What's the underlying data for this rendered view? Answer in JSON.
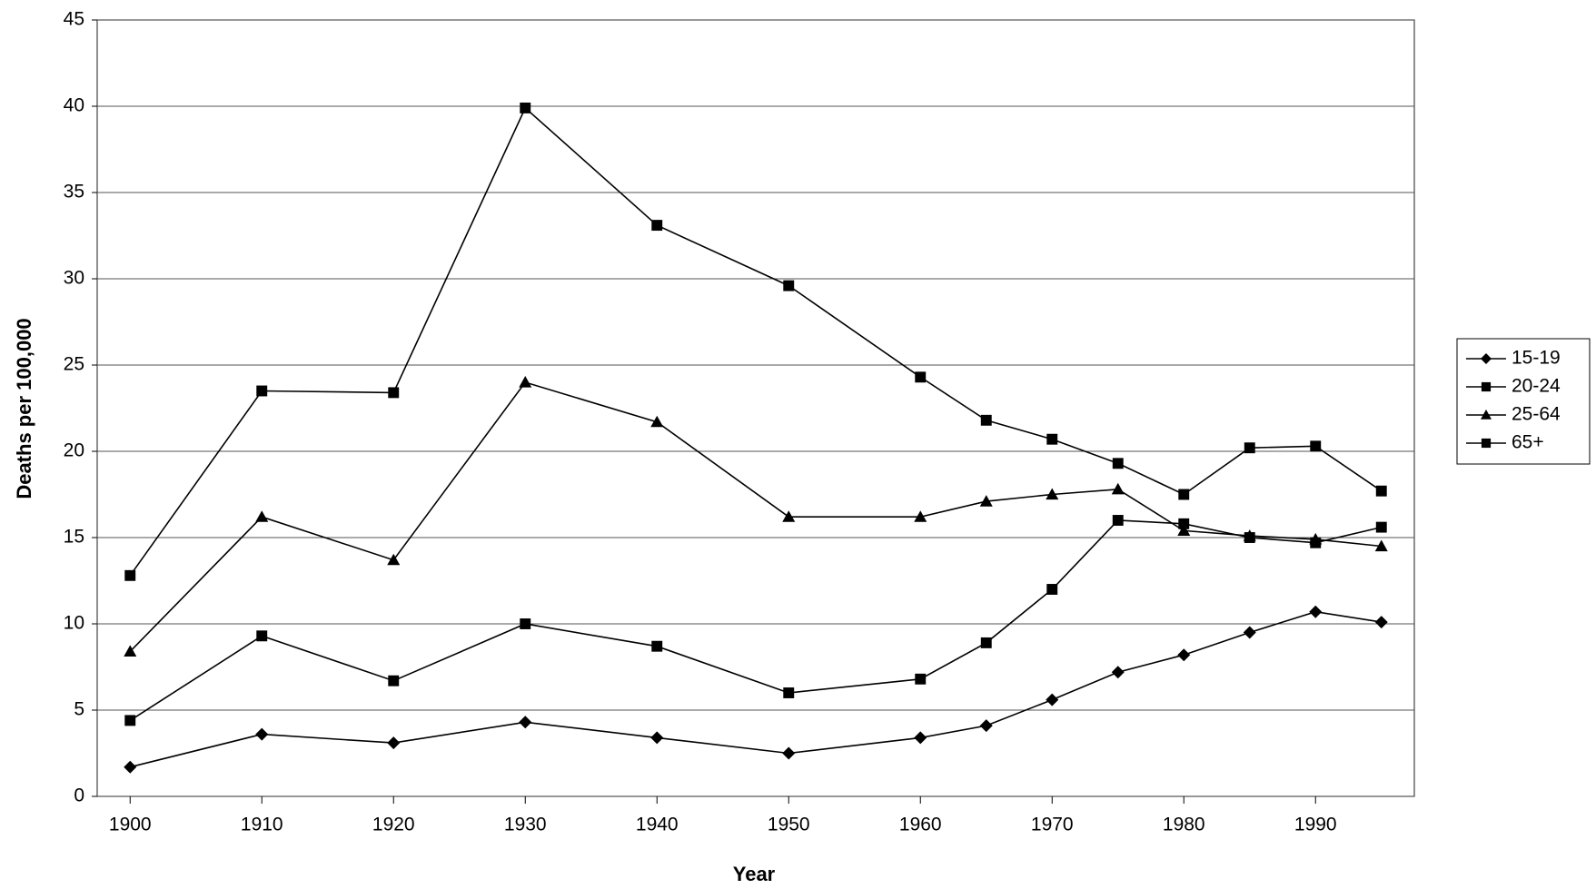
{
  "chart_data": {
    "type": "line",
    "x_label": "Year",
    "y_label": "Deaths per 100,000",
    "x": [
      1900,
      1910,
      1920,
      1930,
      1940,
      1950,
      1960,
      1965,
      1970,
      1975,
      1980,
      1985,
      1990,
      1995
    ],
    "series": [
      {
        "name": "15-19",
        "color": "#000000",
        "marker": "diamond",
        "values": [
          1.7,
          3.6,
          3.1,
          4.3,
          3.4,
          2.5,
          3.4,
          4.1,
          5.6,
          7.2,
          8.2,
          9.5,
          10.7,
          10.1
        ]
      },
      {
        "name": "20-24",
        "color": "#000000",
        "marker": "square",
        "values": [
          4.4,
          9.3,
          6.7,
          10.0,
          8.7,
          6.0,
          6.8,
          8.9,
          12.0,
          16.0,
          15.8,
          15.0,
          14.7,
          15.6
        ]
      },
      {
        "name": "25-64",
        "color": "#000000",
        "marker": "triangle",
        "values": [
          8.4,
          16.2,
          13.7,
          24.0,
          21.7,
          16.2,
          16.2,
          17.1,
          17.5,
          17.8,
          15.4,
          15.1,
          14.9,
          14.5
        ]
      },
      {
        "name": "65+",
        "color": "#000000",
        "marker": "square",
        "values": [
          12.8,
          23.5,
          23.4,
          39.9,
          33.1,
          29.6,
          24.3,
          21.8,
          20.7,
          19.3,
          17.5,
          20.2,
          20.3,
          17.7
        ]
      }
    ],
    "xlim": [
      1897.5,
      1997.5
    ],
    "xticks": [
      1900,
      1910,
      1920,
      1930,
      1940,
      1950,
      1960,
      1970,
      1980,
      1990
    ],
    "ylim": [
      0,
      45
    ],
    "yticks": [
      0,
      5,
      10,
      15,
      20,
      25,
      30,
      35,
      40,
      45
    ],
    "grid": true,
    "legend": "right"
  }
}
